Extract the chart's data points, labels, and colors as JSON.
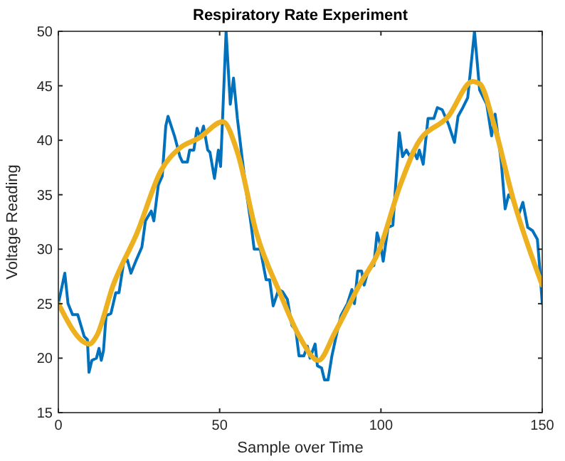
{
  "chart_data": {
    "type": "line",
    "title": "Respiratory Rate Experiment",
    "xlabel": "Sample over Time",
    "ylabel": "Voltage Reading",
    "xlim": [
      0,
      150
    ],
    "xticks": [
      0,
      50,
      100,
      150
    ],
    "ylim": [
      15,
      50
    ],
    "yticks": [
      15,
      20,
      25,
      30,
      35,
      40,
      45,
      50
    ],
    "grid": false,
    "line_style": "solid",
    "marker": "none",
    "series": [
      {
        "color": "#0072bd",
        "x": [
          0,
          2,
          3,
          4.4,
          6,
          8,
          9,
          9.5,
          10.4,
          11.8,
          12.6,
          13.3,
          14,
          14.8,
          16.3,
          17.8,
          18.8,
          20.3,
          21.4,
          22.5,
          24,
          25.9,
          27,
          28.8,
          29.6,
          31,
          32.2,
          33.3,
          34,
          36,
          37.7,
          38.5,
          40,
          40.7,
          42,
          43,
          44,
          45,
          46.3,
          47,
          48.4,
          49.6,
          50.3,
          52,
          53.3,
          54.3,
          55.5,
          57,
          58.4,
          59.5,
          60,
          60.7,
          62.6,
          64.4,
          65.5,
          66.6,
          68.3,
          69.5,
          71,
          72.4,
          73.6,
          74.6,
          76.1,
          77.2,
          78,
          79.6,
          80.3,
          81.6,
          82.5,
          83.6,
          84.8,
          86.1,
          87.6,
          89.6,
          91,
          91.8,
          92.8,
          94,
          94.8,
          96.3,
          97.8,
          98.8,
          100,
          100.7,
          102.2,
          103.7,
          105.7,
          106.7,
          107.9,
          109,
          110,
          111.2,
          111.9,
          113.1,
          114.6,
          116.4,
          117.5,
          119,
          120.9,
          122.8,
          123.9,
          125.4,
          126.9,
          129,
          130.6,
          132.8,
          134.3,
          135.4,
          137.3,
          138.5,
          139.6,
          140.7,
          142.5,
          144,
          145.5,
          147,
          148.5,
          149.3,
          150
        ],
        "values": [
          25,
          27.8,
          25,
          24,
          24,
          22,
          21.7,
          18.7,
          19.8,
          20,
          20.9,
          19.8,
          20.7,
          23.9,
          24.1,
          26,
          26,
          28.9,
          29,
          27.8,
          28.9,
          30.2,
          32.6,
          33.5,
          32.6,
          35.9,
          36.7,
          41.3,
          42.2,
          40.4,
          38.5,
          38,
          38,
          39.1,
          39.1,
          41.1,
          40.2,
          41.3,
          39.1,
          38.9,
          36.5,
          39.1,
          37.6,
          50,
          43.3,
          45.7,
          42,
          38.3,
          35,
          32.8,
          31.7,
          30,
          30,
          27.2,
          27.2,
          24.8,
          26.3,
          26.1,
          25.4,
          23,
          22.6,
          20.2,
          20.2,
          21.1,
          20,
          21.3,
          19.3,
          19.1,
          18,
          18,
          20.2,
          22,
          23.9,
          25,
          26.3,
          25,
          28,
          28,
          26.7,
          28.3,
          28.5,
          31.5,
          30.2,
          28.9,
          32,
          32.2,
          40.7,
          38.5,
          39.1,
          38.5,
          39.1,
          38.3,
          39.1,
          37.8,
          42,
          42,
          43,
          42.8,
          41.5,
          39.8,
          42.2,
          43,
          43.9,
          50,
          44.6,
          43.3,
          40.4,
          42.4,
          38,
          33.7,
          35,
          34.6,
          33,
          34.3,
          32,
          31.7,
          30.9,
          28,
          25
        ]
      },
      {
        "color": "#edb120",
        "x": [
          0,
          9.6,
          11.8,
          17,
          24.4,
          31.8,
          37.7,
          43.6,
          51,
          55.5,
          61.4,
          68.8,
          74.7,
          80.6,
          85.8,
          93.3,
          99.3,
          106,
          111.2,
          120.9,
          128.4,
          130.6,
          135,
          141,
          150
        ],
        "values": [
          25,
          21.3,
          22,
          26.7,
          31.5,
          37.2,
          39.3,
          40.2,
          41.7,
          38.9,
          31.5,
          25.9,
          22,
          19.8,
          22.4,
          26.7,
          29.8,
          35.9,
          39.6,
          42.2,
          45.4,
          45.2,
          41.5,
          34.6,
          26.7
        ]
      }
    ]
  }
}
